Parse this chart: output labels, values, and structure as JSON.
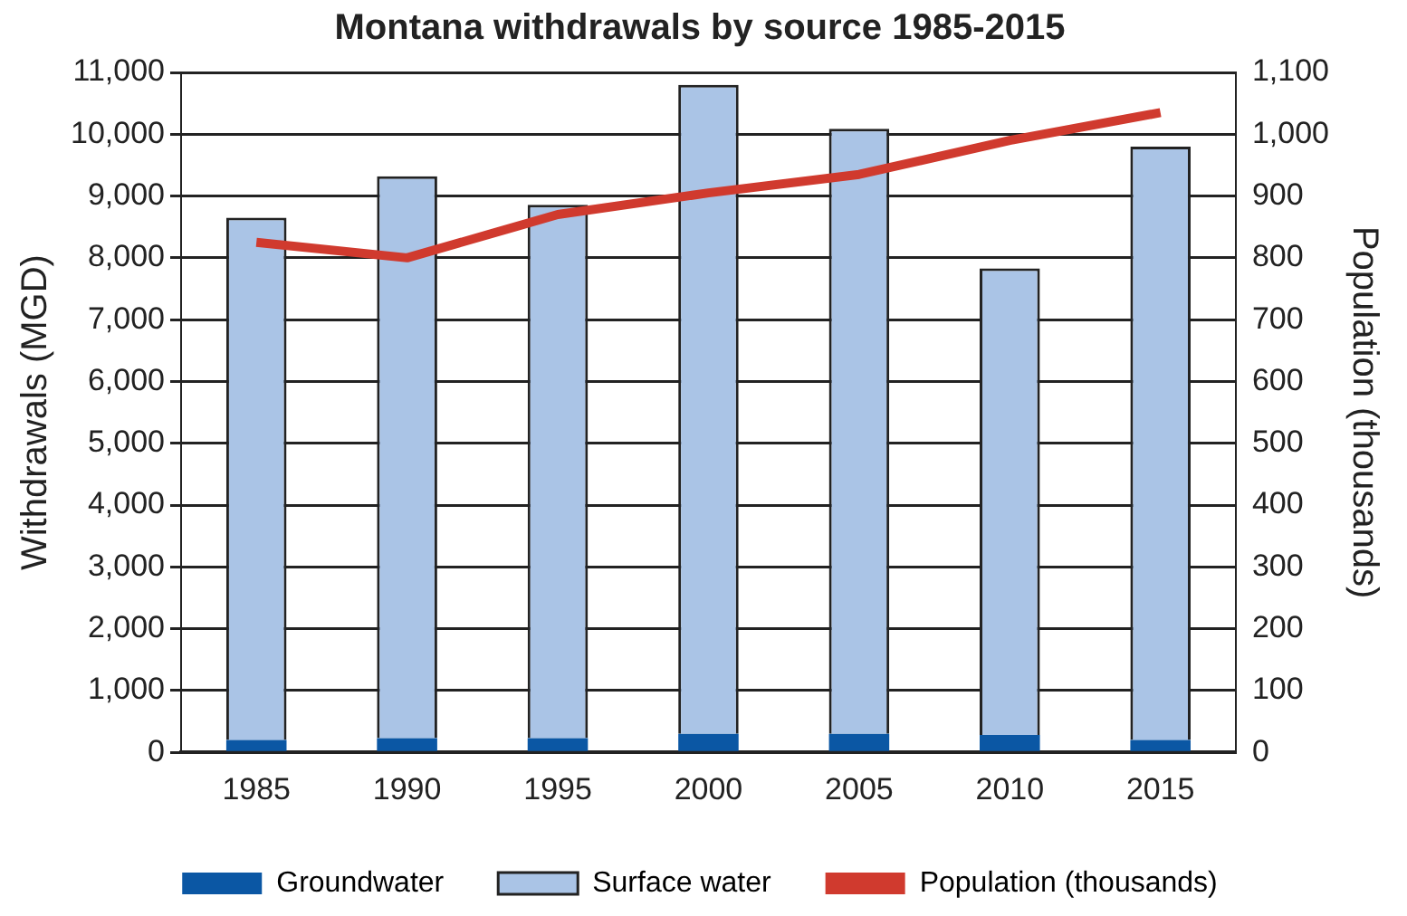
{
  "chart_data": {
    "type": "bar",
    "title": "Montana withdrawals by source 1985-2015",
    "ylabel": "Withdrawals (MGD)",
    "y2label": "Population (thousands)",
    "categories": [
      "1985",
      "1990",
      "1995",
      "2000",
      "2005",
      "2010",
      "2015"
    ],
    "stacked": true,
    "series": [
      {
        "name": "Groundwater",
        "color": "#0b57a4",
        "values": [
          200,
          230,
          230,
          300,
          300,
          280,
          200
        ]
      },
      {
        "name": "Surface water",
        "color": "#aac4e6",
        "values": [
          8450,
          9090,
          8630,
          10500,
          9790,
          7550,
          9600
        ]
      },
      {
        "name": "Population (thousands)",
        "type": "line",
        "axis": "y2",
        "color": "#d03a2e",
        "values": [
          825,
          800,
          870,
          905,
          935,
          990,
          1035
        ]
      }
    ],
    "ylim": [
      0,
      11000
    ],
    "yticks": [
      {
        "value": 0,
        "label": "0"
      },
      {
        "value": 1000,
        "label": "1,000"
      },
      {
        "value": 2000,
        "label": "2,000"
      },
      {
        "value": 3000,
        "label": "3,000"
      },
      {
        "value": 4000,
        "label": "4,000"
      },
      {
        "value": 5000,
        "label": "5,000"
      },
      {
        "value": 6000,
        "label": "6,000"
      },
      {
        "value": 7000,
        "label": "7,000"
      },
      {
        "value": 8000,
        "label": "8,000"
      },
      {
        "value": 9000,
        "label": "9,000"
      },
      {
        "value": 10000,
        "label": "10,000"
      },
      {
        "value": 11000,
        "label": "11,000"
      }
    ],
    "y2lim": [
      0,
      1100
    ],
    "y2ticks": [
      0,
      100,
      200,
      300,
      400,
      500,
      600,
      700,
      800,
      900,
      {
        "value": 1000,
        "label": "1,000"
      },
      {
        "value": 1100,
        "label": "1,100"
      }
    ],
    "grid": "y",
    "legend": "bottom",
    "marker": "none",
    "line_style": "solid"
  }
}
